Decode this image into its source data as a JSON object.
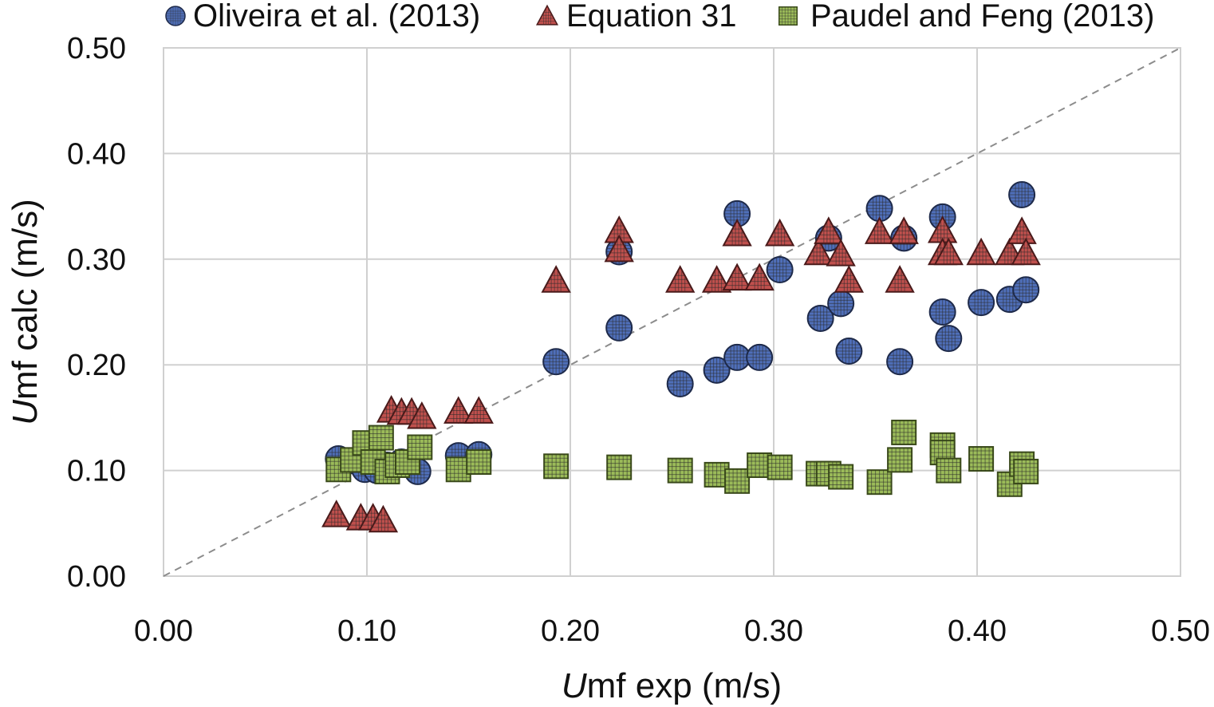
{
  "chart_data": {
    "type": "scatter",
    "title": "",
    "xlabel_italic": "U",
    "xlabel_rest": "mf exp (m/s)",
    "ylabel_italic": "U",
    "ylabel_rest": "mf calc (m/s)",
    "xlim": [
      0,
      0.5
    ],
    "ylim": [
      0,
      0.5
    ],
    "xticks": [
      "0.00",
      "0.10",
      "0.20",
      "0.30",
      "0.40",
      "0.50"
    ],
    "yticks": [
      "0.00",
      "0.10",
      "0.20",
      "0.30",
      "0.40",
      "0.50"
    ],
    "grid": true,
    "legend_position": "top",
    "reference_line": {
      "style": "dashed",
      "color": "#8c8c8c",
      "from": [
        0,
        0
      ],
      "to": [
        0.5,
        0.5
      ]
    },
    "series": [
      {
        "name": "Oliveira et al. (2013)",
        "marker": "circle",
        "color": "#4f6fba",
        "points": [
          [
            0.086,
            0.111
          ],
          [
            0.094,
            0.109
          ],
          [
            0.099,
            0.101
          ],
          [
            0.105,
            0.1
          ],
          [
            0.11,
            0.105
          ],
          [
            0.117,
            0.108
          ],
          [
            0.125,
            0.099
          ],
          [
            0.145,
            0.114
          ],
          [
            0.155,
            0.115
          ],
          [
            0.193,
            0.203
          ],
          [
            0.224,
            0.235
          ],
          [
            0.224,
            0.307
          ],
          [
            0.254,
            0.182
          ],
          [
            0.272,
            0.195
          ],
          [
            0.282,
            0.207
          ],
          [
            0.282,
            0.343
          ],
          [
            0.293,
            0.207
          ],
          [
            0.303,
            0.29
          ],
          [
            0.323,
            0.244
          ],
          [
            0.327,
            0.32
          ],
          [
            0.333,
            0.258
          ],
          [
            0.337,
            0.213
          ],
          [
            0.352,
            0.348
          ],
          [
            0.362,
            0.203
          ],
          [
            0.364,
            0.32
          ],
          [
            0.383,
            0.34
          ],
          [
            0.383,
            0.25
          ],
          [
            0.386,
            0.225
          ],
          [
            0.402,
            0.259
          ],
          [
            0.416,
            0.262
          ],
          [
            0.422,
            0.361
          ],
          [
            0.424,
            0.271
          ]
        ]
      },
      {
        "name": "Equation 31",
        "marker": "triangle",
        "color": "#c0504d",
        "points": [
          [
            0.085,
            0.058
          ],
          [
            0.097,
            0.055
          ],
          [
            0.103,
            0.055
          ],
          [
            0.108,
            0.053
          ],
          [
            0.112,
            0.157
          ],
          [
            0.117,
            0.155
          ],
          [
            0.122,
            0.155
          ],
          [
            0.127,
            0.151
          ],
          [
            0.145,
            0.156
          ],
          [
            0.155,
            0.156
          ],
          [
            0.193,
            0.28
          ],
          [
            0.224,
            0.327
          ],
          [
            0.224,
            0.309
          ],
          [
            0.254,
            0.28
          ],
          [
            0.272,
            0.28
          ],
          [
            0.282,
            0.282
          ],
          [
            0.282,
            0.324
          ],
          [
            0.293,
            0.282
          ],
          [
            0.303,
            0.324
          ],
          [
            0.322,
            0.306
          ],
          [
            0.327,
            0.326
          ],
          [
            0.333,
            0.305
          ],
          [
            0.337,
            0.28
          ],
          [
            0.352,
            0.326
          ],
          [
            0.362,
            0.28
          ],
          [
            0.364,
            0.326
          ],
          [
            0.383,
            0.327
          ],
          [
            0.383,
            0.306
          ],
          [
            0.386,
            0.306
          ],
          [
            0.402,
            0.306
          ],
          [
            0.416,
            0.306
          ],
          [
            0.422,
            0.326
          ],
          [
            0.424,
            0.306
          ]
        ]
      },
      {
        "name": "Paudel and Feng (2013)",
        "marker": "square",
        "color": "#9bbb59",
        "points": [
          [
            0.086,
            0.101
          ],
          [
            0.093,
            0.11
          ],
          [
            0.099,
            0.126
          ],
          [
            0.103,
            0.108
          ],
          [
            0.107,
            0.131
          ],
          [
            0.11,
            0.099
          ],
          [
            0.115,
            0.105
          ],
          [
            0.12,
            0.108
          ],
          [
            0.126,
            0.122
          ],
          [
            0.145,
            0.101
          ],
          [
            0.155,
            0.108
          ],
          [
            0.193,
            0.104
          ],
          [
            0.224,
            0.103
          ],
          [
            0.254,
            0.1
          ],
          [
            0.272,
            0.096
          ],
          [
            0.282,
            0.09
          ],
          [
            0.293,
            0.105
          ],
          [
            0.303,
            0.103
          ],
          [
            0.322,
            0.097
          ],
          [
            0.327,
            0.097
          ],
          [
            0.333,
            0.094
          ],
          [
            0.352,
            0.089
          ],
          [
            0.362,
            0.11
          ],
          [
            0.364,
            0.136
          ],
          [
            0.383,
            0.124
          ],
          [
            0.383,
            0.117
          ],
          [
            0.386,
            0.1
          ],
          [
            0.402,
            0.111
          ],
          [
            0.416,
            0.087
          ],
          [
            0.422,
            0.106
          ],
          [
            0.424,
            0.099
          ]
        ]
      }
    ]
  }
}
